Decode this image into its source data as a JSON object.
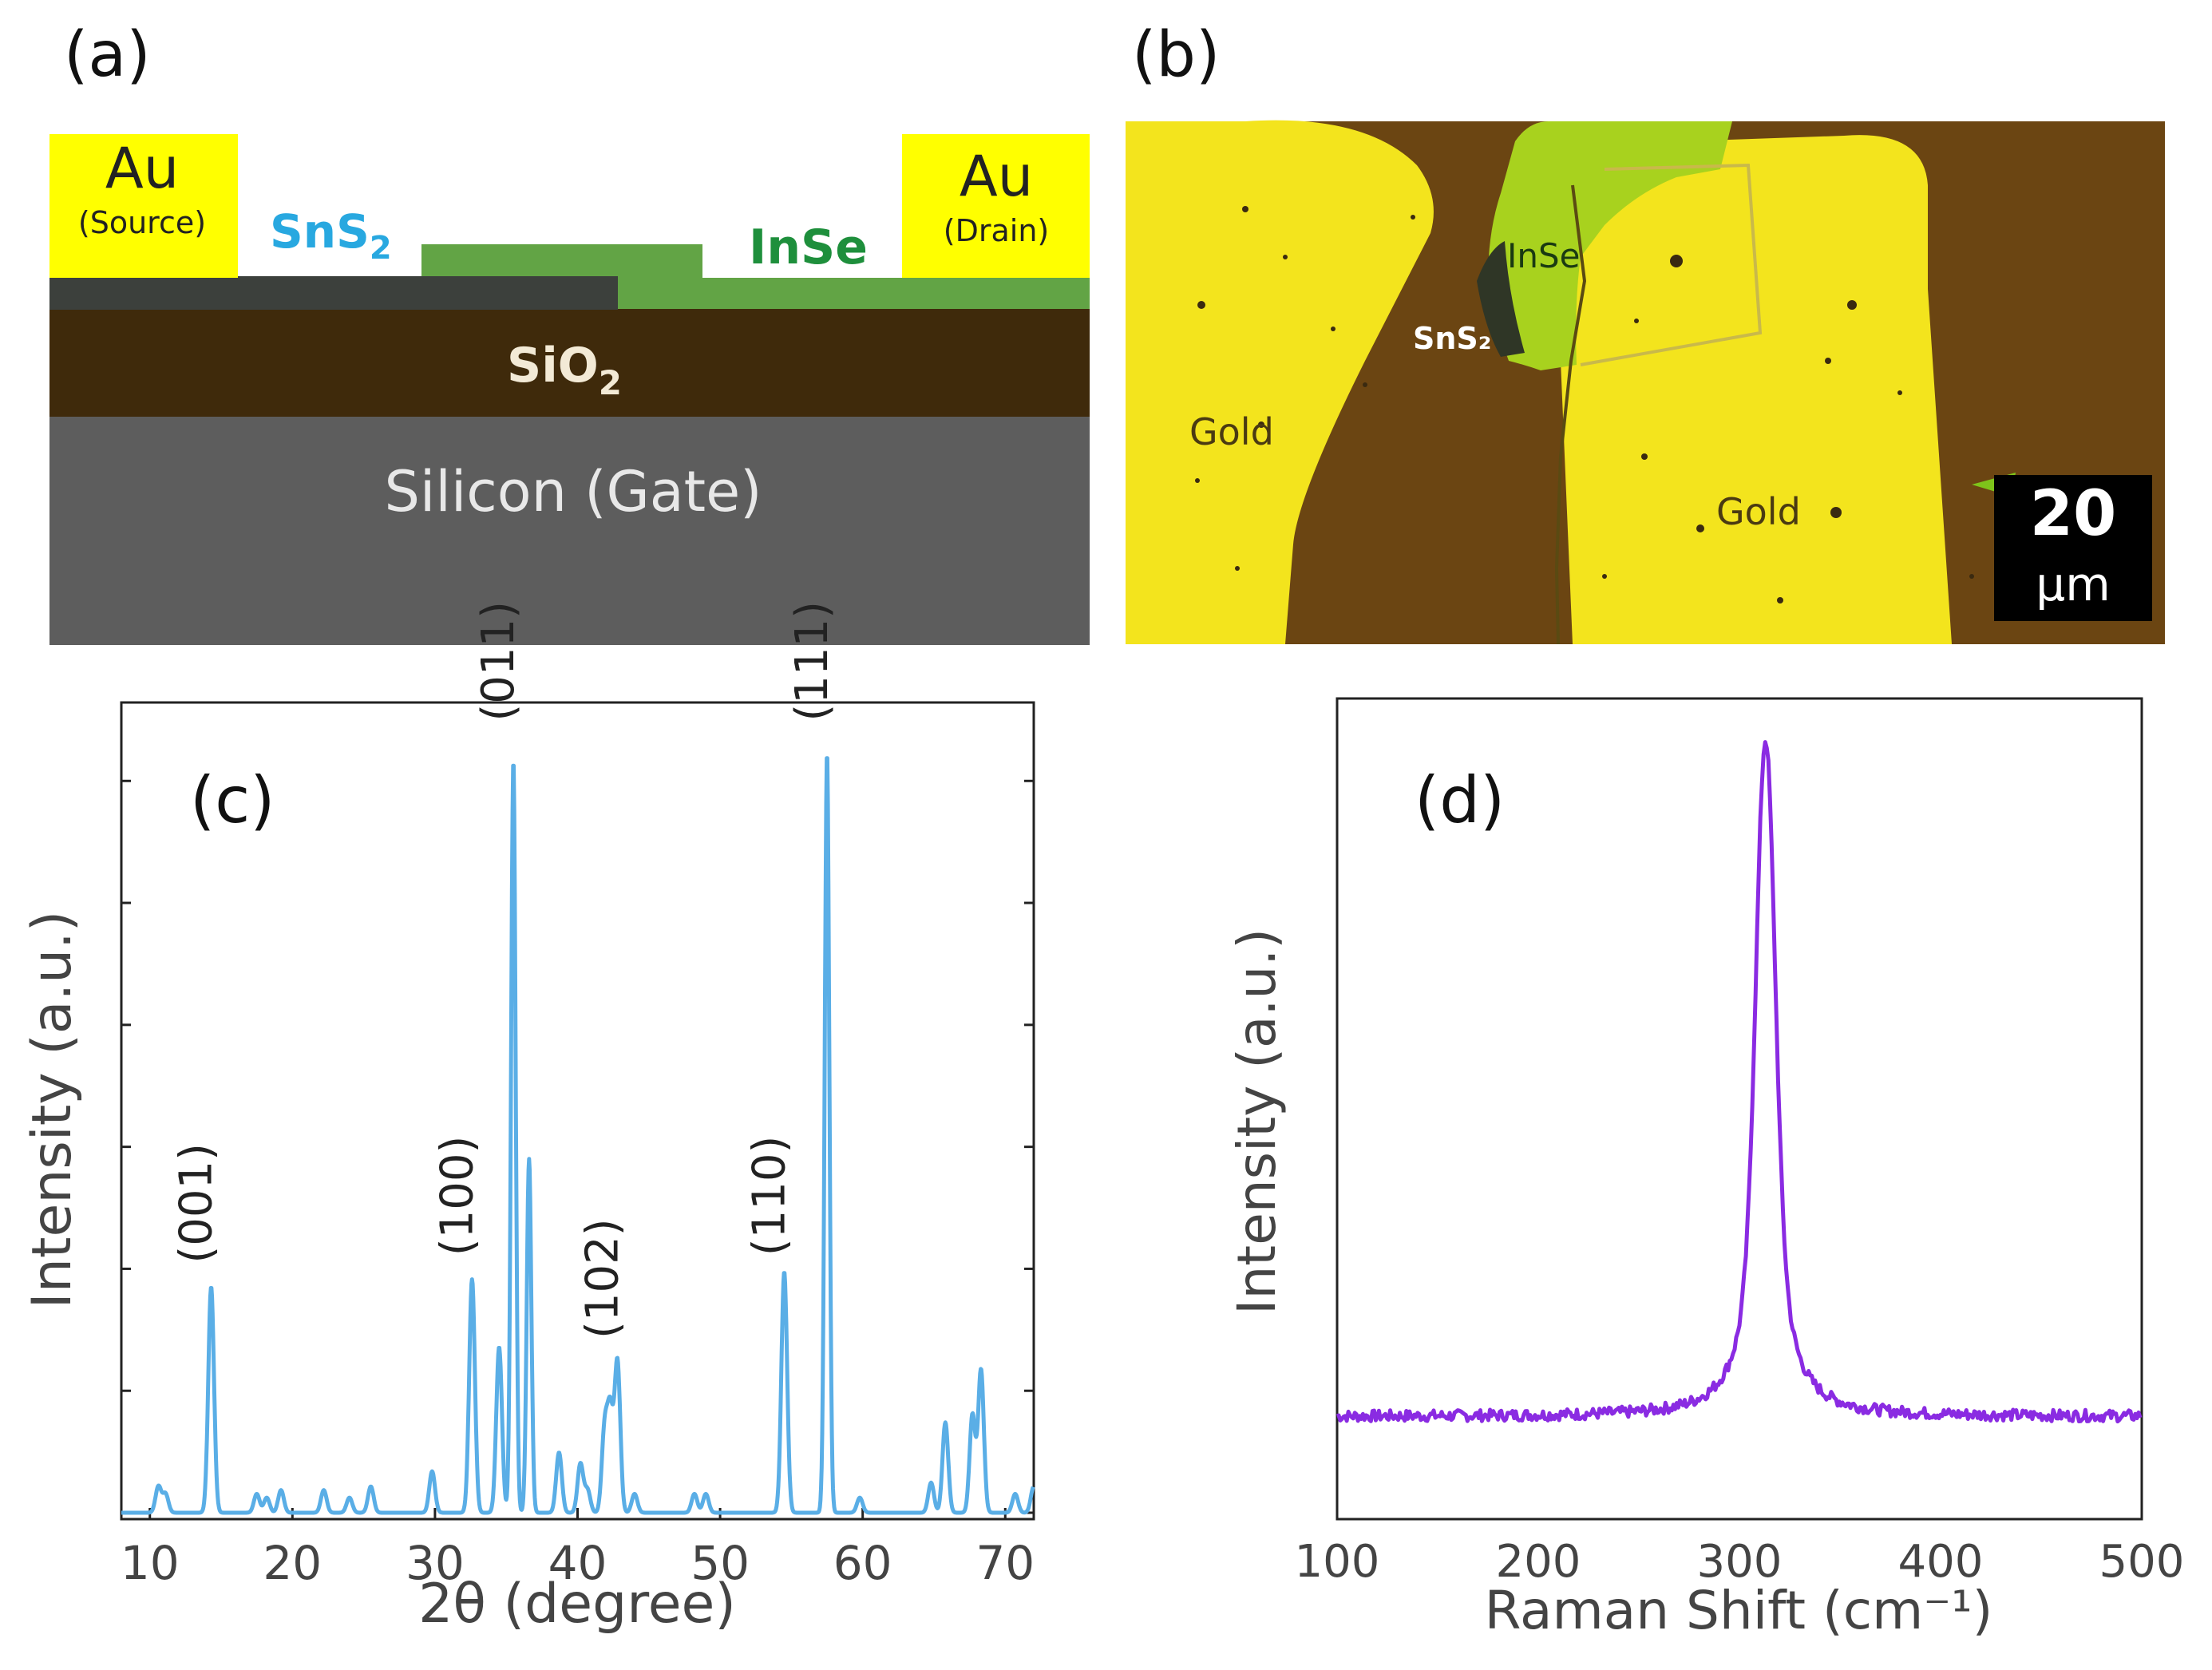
{
  "panels": {
    "a": {
      "label": "(a)",
      "au_left": "Au",
      "au_left_sub": "(Source)",
      "au_right": "Au",
      "au_right_sub": "(Drain)",
      "sns2": "SnS",
      "sns2_sub": "2",
      "inse": "InSe",
      "sio2": "SiO",
      "sio2_sub": "2",
      "silicon": "Silicon (Gate)",
      "colors": {
        "gold": "#ffff00",
        "sns2_layer": "#3c403c",
        "inse_layer": "#62a445",
        "sio2": "#3f2a0b",
        "silicon": "#5d5d5d",
        "sns2_text": "#28a8e0",
        "inse_text": "#1e8f3c"
      }
    },
    "b": {
      "label": "(b)",
      "inse": "InSe",
      "sns2": "SnS₂",
      "gold_left": "Gold",
      "gold_right": "Gold",
      "scale_value": "20",
      "scale_unit": "μm",
      "colors": {
        "background": "#6b4512",
        "gold": "#f3e41d",
        "inse": "#a8d21e",
        "sns2": "#2f3626"
      }
    },
    "c": {
      "label": "(c)",
      "color": "#5aaee6"
    },
    "d": {
      "label": "(d)",
      "color": "#8a2be2"
    }
  },
  "chart_data": [
    {
      "type": "line",
      "panel": "c",
      "xlabel": "2θ (degree)",
      "ylabel": "Intensity (a.u.)",
      "xlim": [
        8,
        72
      ],
      "ylim": [
        0,
        105
      ],
      "xticks": [
        10,
        20,
        30,
        40,
        50,
        60,
        70
      ],
      "peak_labels": [
        {
          "text": "(001)",
          "x": 14.3,
          "y": 31
        },
        {
          "text": "(100)",
          "x": 32.6,
          "y": 32
        },
        {
          "text": "(011)",
          "x": 35.5,
          "y": 103
        },
        {
          "text": "(102)",
          "x": 42.8,
          "y": 21
        },
        {
          "text": "(110)",
          "x": 54.5,
          "y": 32
        },
        {
          "text": "(111)",
          "x": 57.5,
          "y": 103
        }
      ],
      "peaks": [
        {
          "x": 10.6,
          "y": 3.5
        },
        {
          "x": 11.1,
          "y": 2.5
        },
        {
          "x": 14.3,
          "y": 30
        },
        {
          "x": 17.5,
          "y": 2.5
        },
        {
          "x": 18.2,
          "y": 2.0
        },
        {
          "x": 19.2,
          "y": 3.0
        },
        {
          "x": 22.2,
          "y": 3.0
        },
        {
          "x": 24.0,
          "y": 2.0
        },
        {
          "x": 25.5,
          "y": 3.5
        },
        {
          "x": 29.8,
          "y": 5.5
        },
        {
          "x": 32.6,
          "y": 31
        },
        {
          "x": 34.5,
          "y": 22
        },
        {
          "x": 35.5,
          "y": 100
        },
        {
          "x": 36.6,
          "y": 47
        },
        {
          "x": 38.7,
          "y": 8
        },
        {
          "x": 40.2,
          "y": 6.5
        },
        {
          "x": 40.7,
          "y": 3.0
        },
        {
          "x": 41.9,
          "y": 11
        },
        {
          "x": 42.3,
          "y": 13
        },
        {
          "x": 42.8,
          "y": 20
        },
        {
          "x": 44.0,
          "y": 2.5
        },
        {
          "x": 48.2,
          "y": 2.5
        },
        {
          "x": 49.0,
          "y": 2.5
        },
        {
          "x": 54.5,
          "y": 32
        },
        {
          "x": 57.5,
          "y": 101
        },
        {
          "x": 59.8,
          "y": 2.0
        },
        {
          "x": 64.8,
          "y": 4.0
        },
        {
          "x": 65.8,
          "y": 12
        },
        {
          "x": 67.7,
          "y": 13
        },
        {
          "x": 68.3,
          "y": 19
        },
        {
          "x": 70.7,
          "y": 2.5
        },
        {
          "x": 72.0,
          "y": 3.5
        }
      ]
    },
    {
      "type": "line",
      "panel": "d",
      "xlabel": "Raman Shift (cm⁻¹)",
      "ylabel": "Intensity (a.u.)",
      "xlim": [
        100,
        500
      ],
      "xticks": [
        100,
        200,
        300,
        400,
        500
      ],
      "ylim": [
        0,
        100
      ],
      "baseline": 12.5,
      "peak": {
        "x": 313,
        "y": 95
      }
    }
  ]
}
